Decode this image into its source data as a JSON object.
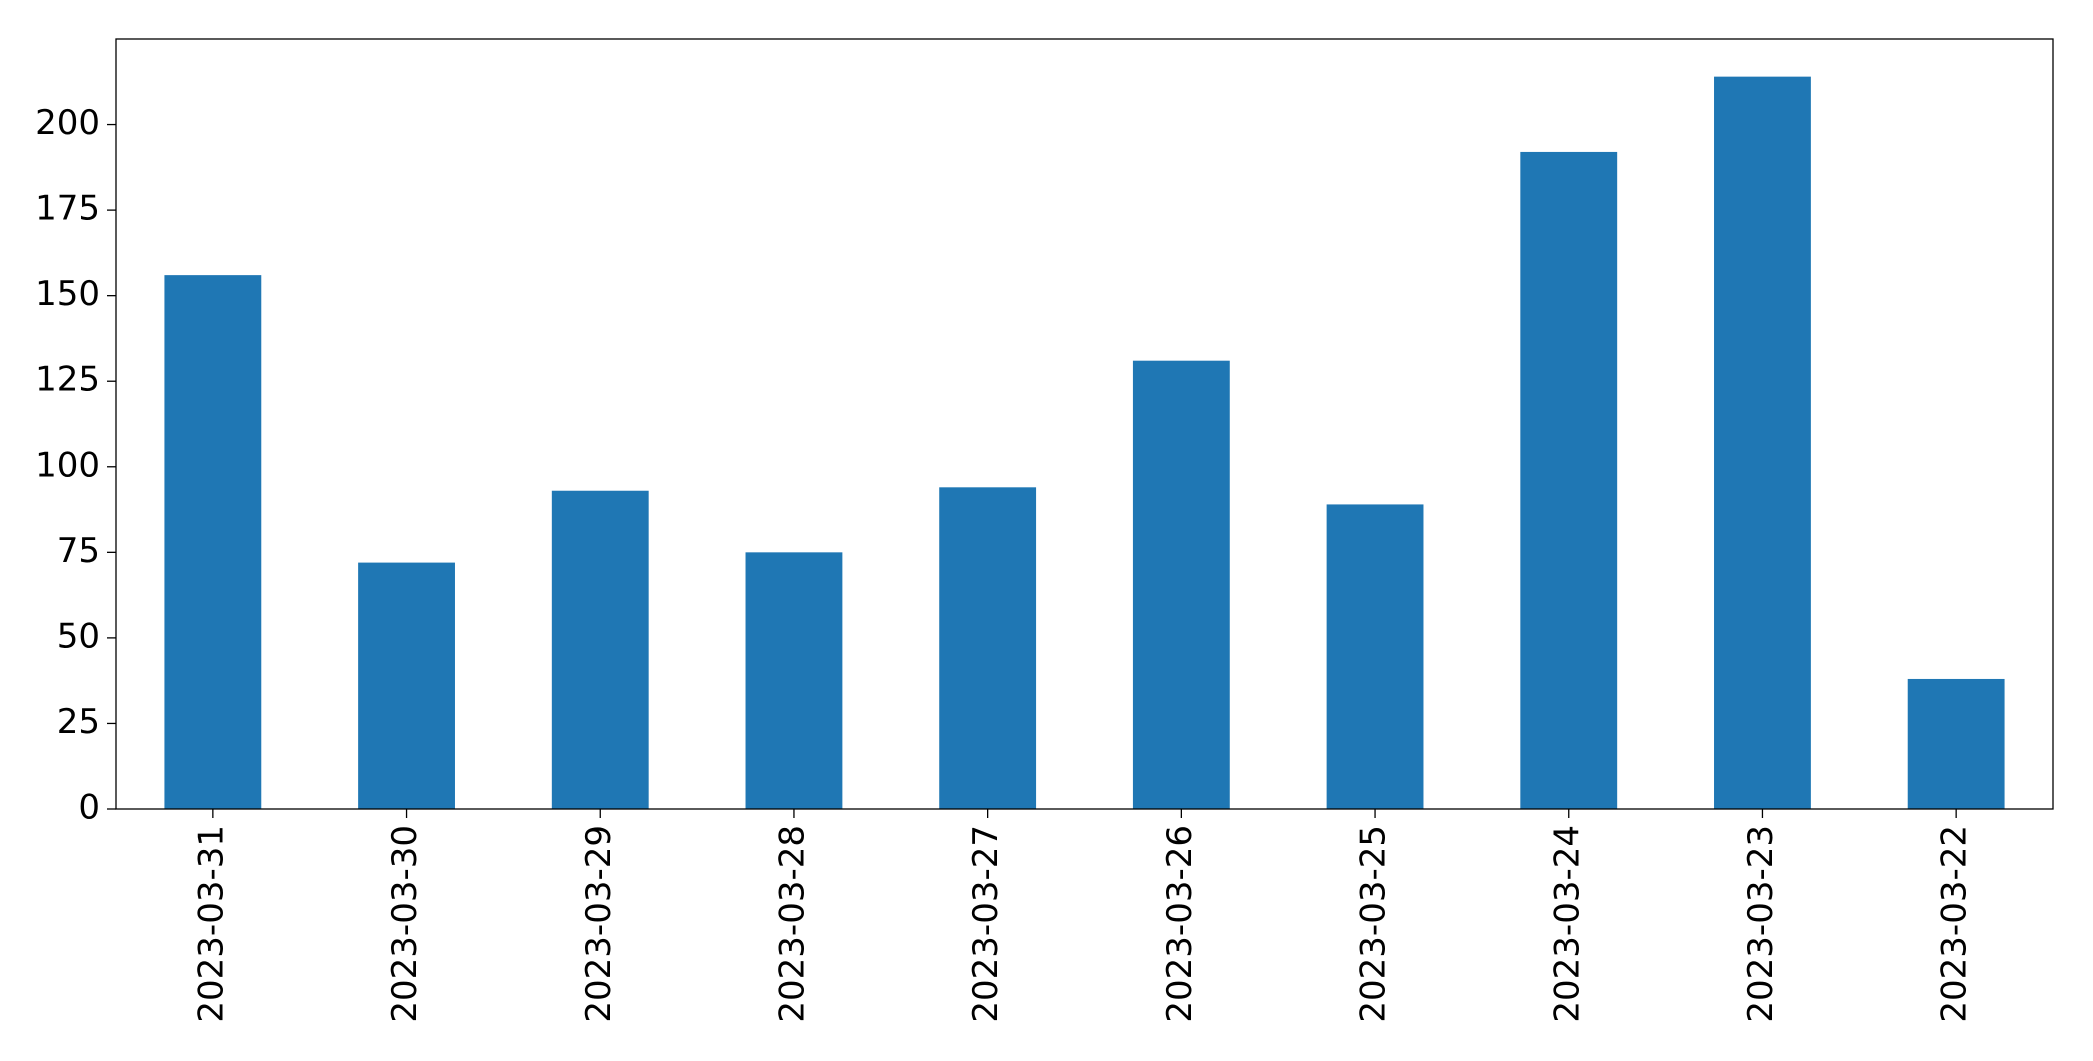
{
  "chart_data": {
    "type": "bar",
    "categories": [
      "2023-03-31",
      "2023-03-30",
      "2023-03-29",
      "2023-03-28",
      "2023-03-27",
      "2023-03-26",
      "2023-03-25",
      "2023-03-24",
      "2023-03-23",
      "2023-03-22"
    ],
    "values": [
      156,
      72,
      93,
      75,
      94,
      131,
      89,
      192,
      214,
      38
    ],
    "color": "#1f77b4",
    "ylim": [
      0,
      225
    ],
    "yticks": [
      0,
      25,
      50,
      75,
      100,
      125,
      150,
      175,
      200
    ],
    "grid": false
  }
}
